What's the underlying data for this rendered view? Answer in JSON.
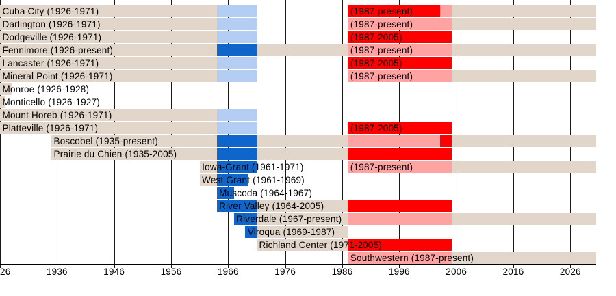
{
  "chart_data": {
    "type": "bar",
    "subtype": "gantt-membership-timeline",
    "title": "",
    "x_axis": {
      "unit": "year",
      "min": 1926,
      "max": 2030.5,
      "ticks": [
        1926,
        1936,
        1946,
        1956,
        1966,
        1976,
        1986,
        1996,
        2006,
        2016,
        2026
      ],
      "first_tick_visible_text": "26",
      "grid": true
    },
    "palette": {
      "tan": "#E2D6CA",
      "lightblue": "#B3CDF3",
      "darkblue": "#0F65C9",
      "red": "#FF0000",
      "pink": "#FFA2A2"
    },
    "grid_color": "#1A1A1A",
    "axis_color": "#000000",
    "text_color": "#000000",
    "rows": [
      {
        "name": "Cuba City",
        "label": "Cuba City (1926-1971)",
        "label_year": 1926,
        "label2": "(1987-present)",
        "label2_year": 1987,
        "segments": [
          {
            "color": "tan",
            "from": 1926,
            "to": 1964
          },
          {
            "color": "lightblue",
            "from": 1964,
            "to": 1971
          },
          {
            "color": "red",
            "from": 1987,
            "to": 2003.2
          },
          {
            "color": "pink",
            "from": 2003.2,
            "to": 2005.2
          },
          {
            "color": "tan",
            "from": 2005.2,
            "to": 2030.5
          }
        ]
      },
      {
        "name": "Darlington",
        "label": "Darlington (1926-1971)",
        "label_year": 1926,
        "label2": "(1987-present)",
        "label2_year": 1987,
        "segments": [
          {
            "color": "tan",
            "from": 1926,
            "to": 1964
          },
          {
            "color": "lightblue",
            "from": 1964,
            "to": 1971
          },
          {
            "color": "pink",
            "from": 1987,
            "to": 2005.2
          },
          {
            "color": "tan",
            "from": 2005.2,
            "to": 2030.5
          }
        ]
      },
      {
        "name": "Dodgeville",
        "label": "Dodgeville (1926-1971)",
        "label_year": 1926,
        "label2": "(1987-2005)",
        "label2_year": 1987,
        "segments": [
          {
            "color": "tan",
            "from": 1926,
            "to": 1964
          },
          {
            "color": "lightblue",
            "from": 1964,
            "to": 1971
          },
          {
            "color": "red",
            "from": 1987,
            "to": 2005.2
          }
        ]
      },
      {
        "name": "Fennimore",
        "label": "Fennimore (1926-present)",
        "label_year": 1926,
        "label2": "(1987-present)",
        "label2_year": 1987,
        "segments": [
          {
            "color": "tan",
            "from": 1926,
            "to": 1964
          },
          {
            "color": "darkblue",
            "from": 1964,
            "to": 1971
          },
          {
            "color": "tan",
            "from": 1971,
            "to": 1987
          },
          {
            "color": "pink",
            "from": 1987,
            "to": 2005.2
          },
          {
            "color": "tan",
            "from": 2005.2,
            "to": 2030.5
          }
        ]
      },
      {
        "name": "Lancaster",
        "label": "Lancaster (1926-1971)",
        "label_year": 1926,
        "label2": "(1987-2005)",
        "label2_year": 1987,
        "segments": [
          {
            "color": "tan",
            "from": 1926,
            "to": 1964
          },
          {
            "color": "lightblue",
            "from": 1964,
            "to": 1971
          },
          {
            "color": "red",
            "from": 1987,
            "to": 2005.2
          }
        ]
      },
      {
        "name": "Mineral Point",
        "label": "Mineral Point (1926-1971)",
        "label_year": 1926,
        "label2": "(1987-present)",
        "label2_year": 1987,
        "segments": [
          {
            "color": "tan",
            "from": 1926,
            "to": 1964
          },
          {
            "color": "lightblue",
            "from": 1964,
            "to": 1971
          },
          {
            "color": "pink",
            "from": 1987,
            "to": 2005.2
          },
          {
            "color": "tan",
            "from": 2005.2,
            "to": 2030.5
          }
        ]
      },
      {
        "name": "Monroe",
        "label": "Monroe (1926-1928)",
        "label_year": 1926,
        "segments": [
          {
            "color": "tan",
            "from": 1926,
            "to": 1928
          }
        ]
      },
      {
        "name": "Monticello",
        "label": "Monticello (1926-1927)",
        "label_year": 1926,
        "segments": [
          {
            "color": "tan",
            "from": 1926,
            "to": 1927
          }
        ]
      },
      {
        "name": "Mount Horeb",
        "label": "Mount Horeb (1926-1971)",
        "label_year": 1926,
        "segments": [
          {
            "color": "tan",
            "from": 1926,
            "to": 1964
          },
          {
            "color": "lightblue",
            "from": 1964,
            "to": 1971
          }
        ]
      },
      {
        "name": "Platteville",
        "label": "Platteville (1926-1971)",
        "label_year": 1926,
        "label2": "(1987-2005)",
        "label2_year": 1987,
        "segments": [
          {
            "color": "tan",
            "from": 1926,
            "to": 1964
          },
          {
            "color": "lightblue",
            "from": 1964,
            "to": 1971
          },
          {
            "color": "red",
            "from": 1987,
            "to": 2005.2
          }
        ]
      },
      {
        "name": "Boscobel",
        "label": "Boscobel (1935-present)",
        "label_year": 1935,
        "segments": [
          {
            "color": "tan",
            "from": 1935,
            "to": 1964
          },
          {
            "color": "darkblue",
            "from": 1964,
            "to": 1971
          },
          {
            "color": "tan",
            "from": 1971,
            "to": 1987
          },
          {
            "color": "pink",
            "from": 1987,
            "to": 2003.2
          },
          {
            "color": "red",
            "from": 2003.2,
            "to": 2005.2
          },
          {
            "color": "tan",
            "from": 2005.2,
            "to": 2030.5
          }
        ]
      },
      {
        "name": "Prairie du Chien",
        "label": "Prairie du Chien (1935-2005)",
        "label_year": 1935,
        "segments": [
          {
            "color": "tan",
            "from": 1935,
            "to": 1964
          },
          {
            "color": "darkblue",
            "from": 1964,
            "to": 1971
          },
          {
            "color": "tan",
            "from": 1971,
            "to": 1987
          },
          {
            "color": "red",
            "from": 1987,
            "to": 2005.2
          }
        ]
      },
      {
        "name": "Iowa-Grant",
        "label": "Iowa-Grant (1961-1971)",
        "label_year": 1961,
        "label2": "(1987-present)",
        "label2_year": 1987,
        "segments": [
          {
            "color": "tan",
            "from": 1961,
            "to": 1964
          },
          {
            "color": "darkblue",
            "from": 1964,
            "to": 1971
          },
          {
            "color": "pink",
            "from": 1987,
            "to": 2005.2
          },
          {
            "color": "tan",
            "from": 2005.2,
            "to": 2030.5
          }
        ]
      },
      {
        "name": "West Grant",
        "label": "West Grant (1961-1969)",
        "label_year": 1961,
        "segments": [
          {
            "color": "tan",
            "from": 1961,
            "to": 1964
          },
          {
            "color": "darkblue",
            "from": 1964,
            "to": 1969.5
          }
        ]
      },
      {
        "name": "Muscoda",
        "label": "Muscoda (1964-1967)",
        "label_year": 1964,
        "segments": [
          {
            "color": "darkblue",
            "from": 1964,
            "to": 1967
          }
        ]
      },
      {
        "name": "River Valley",
        "label": "River Valley (1964-2005)",
        "label_year": 1964,
        "segments": [
          {
            "color": "darkblue",
            "from": 1964,
            "to": 1971
          },
          {
            "color": "tan",
            "from": 1971,
            "to": 1987
          },
          {
            "color": "red",
            "from": 1987,
            "to": 2005.2
          }
        ]
      },
      {
        "name": "Riverdale",
        "label": "Riverdale (1967-present)",
        "label_year": 1967,
        "segments": [
          {
            "color": "darkblue",
            "from": 1967,
            "to": 1971
          },
          {
            "color": "tan",
            "from": 1971,
            "to": 1987
          },
          {
            "color": "pink",
            "from": 1987,
            "to": 2005.2
          },
          {
            "color": "tan",
            "from": 2005.2,
            "to": 2030.5
          }
        ]
      },
      {
        "name": "Viroqua",
        "label": "Viroqua (1969-1987)",
        "label_year": 1969,
        "segments": [
          {
            "color": "darkblue",
            "from": 1969,
            "to": 1971
          },
          {
            "color": "tan",
            "from": 1971,
            "to": 1987
          }
        ]
      },
      {
        "name": "Richland Center",
        "label": "Richland Center (1971-2005)",
        "label_year": 1971,
        "segments": [
          {
            "color": "tan",
            "from": 1971,
            "to": 1987
          },
          {
            "color": "red",
            "from": 1987,
            "to": 2005.2
          }
        ]
      },
      {
        "name": "Southwestern",
        "label": "Southwestern (1987-present)",
        "label_year": 1987,
        "segments": [
          {
            "color": "pink",
            "from": 1987,
            "to": 2005.2
          },
          {
            "color": "tan",
            "from": 2005.2,
            "to": 2030.5
          }
        ]
      }
    ]
  }
}
